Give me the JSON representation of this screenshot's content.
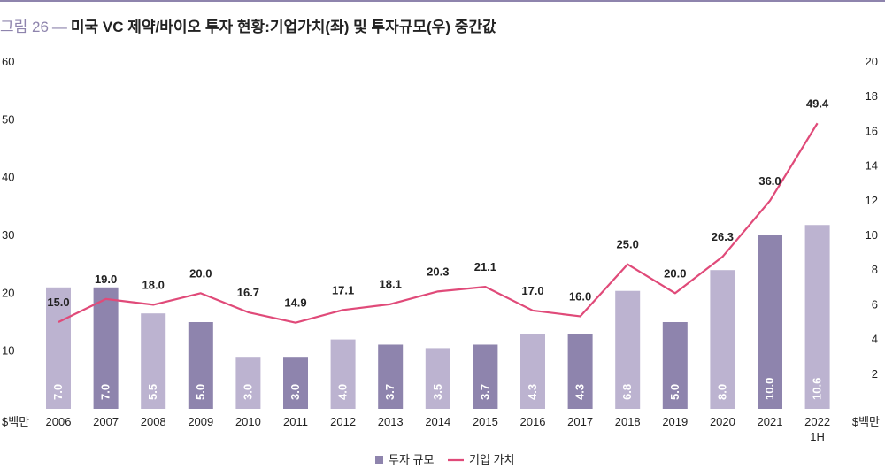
{
  "figure": {
    "label": "그림 26",
    "dash": "—",
    "title": "미국 VC 제약/바이오 투자 현황:기업가치(좌) 및 투자규모(우) 중간값"
  },
  "chart_data": {
    "type": "bar",
    "categories": [
      "2006",
      "2007",
      "2008",
      "2009",
      "2010",
      "2011",
      "2012",
      "2013",
      "2014",
      "2015",
      "2016",
      "2017",
      "2018",
      "2019",
      "2020",
      "2021",
      "2022\n1H"
    ],
    "series": [
      {
        "name": "투자 규모",
        "type": "bar",
        "axis": "right",
        "values": [
          7.0,
          7.0,
          5.5,
          5.0,
          3.0,
          3.0,
          4.0,
          3.7,
          3.5,
          3.7,
          4.3,
          4.3,
          6.8,
          5.0,
          8.0,
          10.0,
          10.6
        ],
        "color": "#bcb3d0",
        "highlight_color": "#8e84ad",
        "highlight_indices": [
          1,
          3,
          5,
          7,
          9,
          11,
          13,
          15
        ]
      },
      {
        "name": "기업 가치",
        "type": "line",
        "axis": "left",
        "values": [
          15.0,
          19.0,
          18.0,
          20.0,
          16.7,
          14.9,
          17.1,
          18.1,
          20.3,
          21.1,
          17.0,
          16.0,
          25.0,
          20.0,
          26.3,
          36.0,
          49.4
        ],
        "color": "#e04a79"
      }
    ],
    "y_left": {
      "min": 0,
      "max": 60,
      "ticks": [
        10,
        20,
        30,
        40,
        50,
        60
      ],
      "unit_label": "$백만"
    },
    "y_right": {
      "min": 0,
      "max": 20,
      "ticks": [
        2,
        4,
        6,
        8,
        10,
        12,
        14,
        16,
        18,
        20
      ],
      "unit_label": "$백만"
    },
    "grid": false,
    "legend_position": "bottom-center"
  }
}
